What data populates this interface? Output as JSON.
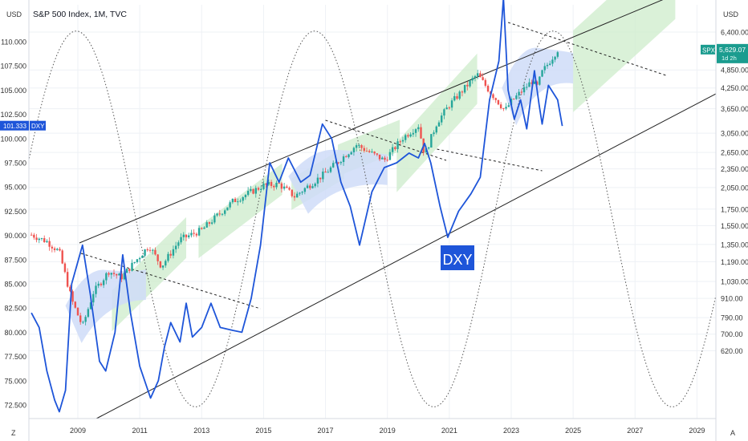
{
  "header": {
    "left_currency_button": "USD",
    "right_currency_button": "USD",
    "title": "S&P 500 Index, 1M, TVC"
  },
  "footer": {
    "left_zoom_button": "Z",
    "right_auto_button": "A"
  },
  "colors": {
    "dxy_line": "#1e55d9",
    "candle_up": "#26a69a",
    "candle_down": "#ef5350",
    "green_band": "#cdeccb",
    "blue_cloud": "#cfdcf8",
    "spx_badge": "#1b9c8f",
    "dxy_badge": "#1e55d9",
    "grid": "#eef1f5",
    "channel": "#222222"
  },
  "chart_data": {
    "type": "line",
    "title": "S&P 500 Index, 1M, TVC",
    "x_ticks": [
      "2009",
      "2011",
      "2013",
      "2015",
      "2017",
      "2019",
      "2021",
      "2023",
      "2025",
      "2027",
      "2029"
    ],
    "left_axis": {
      "label": "USD",
      "ticks": [
        "110.000",
        "107.500",
        "105.000",
        "102.500",
        "100.000",
        "97.500",
        "95.000",
        "92.500",
        "90.000",
        "87.500",
        "85.000",
        "82.500",
        "80.000",
        "77.500",
        "75.000",
        "72.500"
      ],
      "ylim": [
        71.5,
        112
      ]
    },
    "right_axis": {
      "label": "USD",
      "ticks": [
        "6,400.00",
        "4,850.00",
        "4,250.00",
        "3,650.00",
        "3,050.00",
        "2,650.00",
        "2,350.00",
        "2,050.00",
        "1,750.00",
        "1,550.00",
        "1,350.00",
        "1,190.00",
        "1,030.00",
        "910.00",
        "790.00",
        "700.00",
        "620.00"
      ],
      "scale": "log"
    },
    "series": [
      {
        "name": "SPX",
        "style": "candles",
        "last_value_label": "5,629.07",
        "countdown_label": "1d 2h",
        "anchors": [
          [
            2007.5,
            1450
          ],
          [
            2008.0,
            1380
          ],
          [
            2008.4,
            1280
          ],
          [
            2008.8,
            900
          ],
          [
            2009.15,
            740
          ],
          [
            2009.5,
            950
          ],
          [
            2010.0,
            1110
          ],
          [
            2010.4,
            1060
          ],
          [
            2011.3,
            1340
          ],
          [
            2011.7,
            1150
          ],
          [
            2012.3,
            1400
          ],
          [
            2013.0,
            1500
          ],
          [
            2014.0,
            1850
          ],
          [
            2015.0,
            2080
          ],
          [
            2015.5,
            2100
          ],
          [
            2016.0,
            1920
          ],
          [
            2017.0,
            2280
          ],
          [
            2018.0,
            2800
          ],
          [
            2018.9,
            2500
          ],
          [
            2019.5,
            2950
          ],
          [
            2020.0,
            3230
          ],
          [
            2020.2,
            2600
          ],
          [
            2020.6,
            3300
          ],
          [
            2021.0,
            3750
          ],
          [
            2021.9,
            4700
          ],
          [
            2022.3,
            4150
          ],
          [
            2022.8,
            3600
          ],
          [
            2023.0,
            3850
          ],
          [
            2023.7,
            4500
          ],
          [
            2023.8,
            4200
          ],
          [
            2024.0,
            4770
          ],
          [
            2024.5,
            5629
          ]
        ]
      },
      {
        "name": "DXY",
        "style": "line",
        "last_value_label": "101.333",
        "chart_label": "DXY",
        "points": [
          [
            2007.5,
            82
          ],
          [
            2007.75,
            80.5
          ],
          [
            2008.0,
            76
          ],
          [
            2008.25,
            73
          ],
          [
            2008.4,
            71.8
          ],
          [
            2008.6,
            74
          ],
          [
            2008.8,
            85
          ],
          [
            2009.15,
            89
          ],
          [
            2009.4,
            84
          ],
          [
            2009.7,
            77
          ],
          [
            2009.9,
            76
          ],
          [
            2010.2,
            80
          ],
          [
            2010.45,
            88
          ],
          [
            2010.7,
            82
          ],
          [
            2011.0,
            76.5
          ],
          [
            2011.35,
            73.2
          ],
          [
            2011.6,
            75
          ],
          [
            2011.8,
            78.5
          ],
          [
            2012.0,
            81
          ],
          [
            2012.3,
            79
          ],
          [
            2012.5,
            83
          ],
          [
            2012.7,
            79.5
          ],
          [
            2013.0,
            80.5
          ],
          [
            2013.3,
            83
          ],
          [
            2013.6,
            80.5
          ],
          [
            2014.0,
            80.2
          ],
          [
            2014.3,
            80
          ],
          [
            2014.6,
            83.5
          ],
          [
            2014.9,
            89
          ],
          [
            2015.2,
            97.5
          ],
          [
            2015.5,
            95.5
          ],
          [
            2015.8,
            98
          ],
          [
            2016.2,
            95.5
          ],
          [
            2016.5,
            96.2
          ],
          [
            2016.9,
            101.5
          ],
          [
            2017.2,
            100
          ],
          [
            2017.5,
            95.5
          ],
          [
            2017.8,
            93
          ],
          [
            2018.1,
            89
          ],
          [
            2018.5,
            94.5
          ],
          [
            2018.9,
            97
          ],
          [
            2019.3,
            97.5
          ],
          [
            2019.7,
            98.5
          ],
          [
            2020.0,
            98
          ],
          [
            2020.2,
            99.5
          ],
          [
            2020.4,
            97.5
          ],
          [
            2020.7,
            93
          ],
          [
            2020.95,
            89.8
          ],
          [
            2021.3,
            92.5
          ],
          [
            2021.7,
            94.3
          ],
          [
            2022.0,
            96
          ],
          [
            2022.3,
            104
          ],
          [
            2022.6,
            108
          ],
          [
            2022.75,
            114.5
          ],
          [
            2022.9,
            105
          ],
          [
            2023.1,
            102
          ],
          [
            2023.3,
            104
          ],
          [
            2023.5,
            101
          ],
          [
            2023.75,
            107
          ],
          [
            2023.9,
            103.5
          ],
          [
            2024.0,
            101.5
          ],
          [
            2024.2,
            105.5
          ],
          [
            2024.5,
            104
          ],
          [
            2024.65,
            101.3
          ]
        ]
      }
    ],
    "annotations": {
      "dxy_label": "DXY",
      "channel": "parallel ascending channel",
      "sine_cycles": "dotted sine wave",
      "dashed_trendlines": 4,
      "green_bands": "ascending projection zones",
      "blue_clouds": "curved consolidation zones"
    },
    "grid": true
  }
}
